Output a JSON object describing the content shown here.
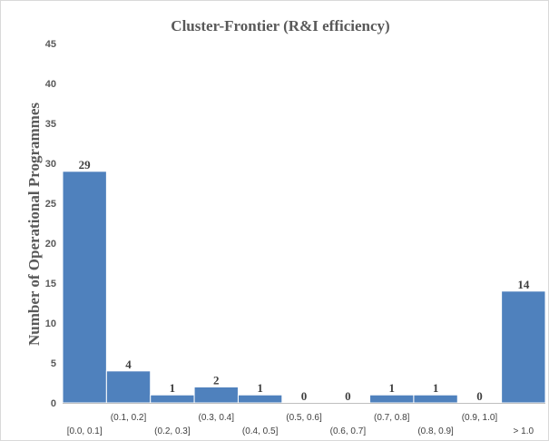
{
  "chart_data": {
    "type": "bar",
    "title": "Cluster-Frontier (R&I efficiency)",
    "xlabel": "",
    "ylabel": "Number of Operational Programmes",
    "ylim": [
      0,
      45
    ],
    "yticks": [
      0,
      5,
      10,
      15,
      20,
      25,
      30,
      35,
      40,
      45
    ],
    "grid": false,
    "legend": "none",
    "bar_color": "#4f81bd",
    "bar_edge_color": "#ffffff",
    "categories": [
      "[0.0, 0.1]",
      "(0.1, 0.2]",
      "(0.2, 0.3]",
      "(0.3, 0.4]",
      "(0.4, 0.5]",
      "(0.5, 0.6]",
      "(0.6, 0.7]",
      "(0.7, 0.8]",
      "(0.8, 0.9]",
      "(0.9, 1.0]",
      "> 1.0"
    ],
    "values": [
      29,
      4,
      1,
      2,
      1,
      0,
      0,
      1,
      1,
      0,
      14
    ]
  }
}
